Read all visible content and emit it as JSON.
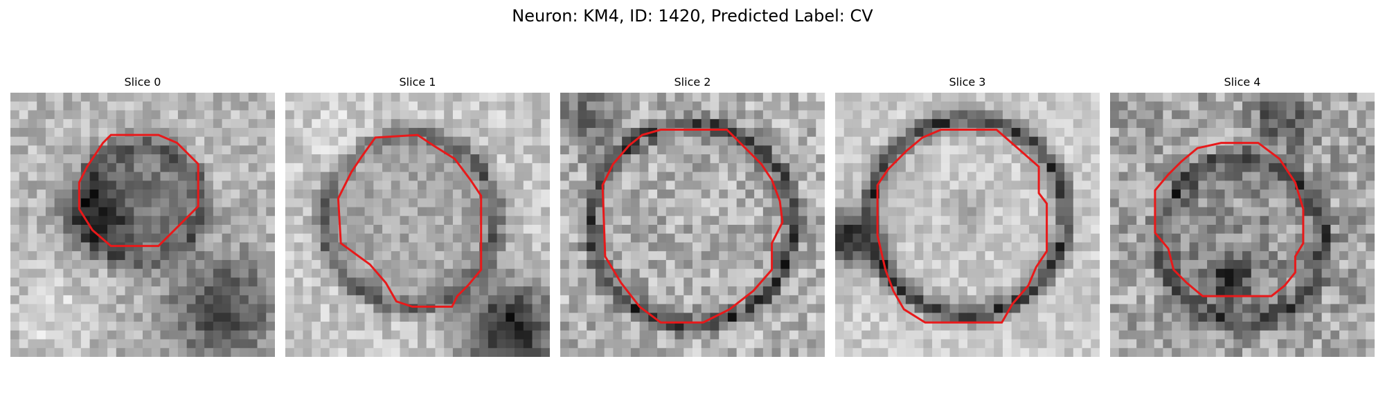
{
  "figure": {
    "title": "Neuron: KM4, ID: 1420, Predicted Label: CV"
  },
  "panels": [
    {
      "title": "Slice 0"
    },
    {
      "title": "Slice 1"
    },
    {
      "title": "Slice 2"
    },
    {
      "title": "Slice 3"
    },
    {
      "title": "Slice 4"
    }
  ],
  "colors": {
    "contour": "#e8191a",
    "background": "#ffffff"
  }
}
